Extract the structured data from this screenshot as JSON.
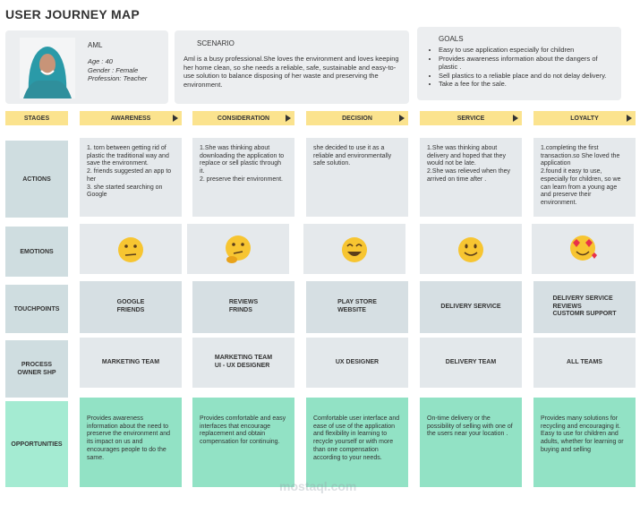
{
  "header": {
    "title": "USER JOURNEY MAP"
  },
  "persona": {
    "name": "AML",
    "details": [
      "Age : 40",
      "Gender : Female",
      "Profession: Teacher"
    ]
  },
  "scenario": {
    "title": "SCENARIO",
    "text": "Aml is a busy professional.She loves the environment and loves keeping her home clean, so she needs a reliable, safe, sustainable and easy-to-use solution to balance disposing of her waste and preserving the environment."
  },
  "goals": {
    "title": "GOALS",
    "items": [
      "Easy to use application especially for children",
      "Provides awareness information about the dangers of plastic .",
      "Sell plastics to a reliable place and do not delay delivery.",
      " Take a fee for the sale."
    ]
  },
  "stages": {
    "label": "STAGES",
    "items": [
      "AWARENESS",
      "CONSIDERATION",
      "DECISION",
      "SERVICE",
      "LOYALTY"
    ]
  },
  "rows": {
    "actions": {
      "label": [
        "ACTIONS"
      ],
      "cells": [
        [
          "1. torn between getting rid of plastic the traditional way and save the environment.",
          " 2. friends suggested an app to her",
          "3. she started searching on Google"
        ],
        [
          "1.She was thinking about downloading the application to replace or sell plastic through it.",
          "2. preserve their environment."
        ],
        [
          "she decided to use it as a reliable and environmentally safe solution."
        ],
        [
          "1.She was thinking about delivery and hoped that they would not be late.",
          "2.She was relieved when they arrived on time after ."
        ],
        [
          "1.completing the first transaction.so She loved the application",
          "2.found it easy to use, especially for children, so we can learn from a young age and preserve their environment."
        ]
      ]
    },
    "emotions": {
      "label": [
        "EMOTIONS"
      ]
    },
    "touchpoints": {
      "label": [
        "TOUCHPOINTS"
      ],
      "cells": [
        [
          "GOOGLE",
          "FRIENDS"
        ],
        [
          "REVIEWS",
          "FRINDS"
        ],
        [
          "PLAY STORE",
          "WEBSITE"
        ],
        [
          "DELIVERY SERVICE"
        ],
        [
          "DELIVERY SERVICE",
          "REVIEWS",
          "CUSTOMR SUPPORT"
        ]
      ]
    },
    "process_owner": {
      "label": [
        "PROCESS",
        "OWNER SHP"
      ],
      "cells": [
        [
          "MARKETING TEAM"
        ],
        [
          "MARKETING TEAM",
          "UI - UX DESIGNER"
        ],
        [
          "UX DESIGNER"
        ],
        [
          "DELIVERY TEAM"
        ],
        [
          "ALL TEAMS"
        ]
      ]
    },
    "opportunities": {
      "label": [
        "OPPORTUNITIES"
      ],
      "cells": [
        [
          "Provides awareness information about the need to preserve the environment and its impact on us and encourages people to do the same."
        ],
        [
          "Provides comfortable and easy interfaces that encourage replacement and obtain compensation for continuing."
        ],
        [
          "Comfortable user interface and ease of use of the application and flexibility in learning to recycle yourself or with more than one compensation according to your needs."
        ],
        [
          "On-time delivery or the possibility of selling with one of the users near your location ."
        ],
        [
          "Provides many solutions for recycling and encouraging it. Easy to use for children and adults, whether for learning or buying and selling"
        ]
      ]
    }
  },
  "watermark": "mostaql.com"
}
